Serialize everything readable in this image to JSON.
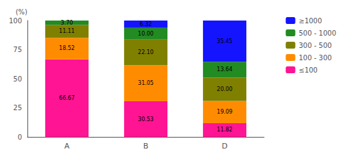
{
  "chart_data": {
    "type": "bar",
    "stacked": true,
    "categories": [
      "A",
      "B",
      "D"
    ],
    "series": [
      {
        "name": "≤100",
        "color": "#FF1493",
        "values": [
          66.67,
          30.53,
          11.82
        ],
        "value_labels": [
          "66.67",
          "30.53",
          "11.82"
        ]
      },
      {
        "name": "100 - 300",
        "color": "#FF8C00",
        "values": [
          18.52,
          31.05,
          19.09
        ],
        "value_labels": [
          "18.52",
          "31.05",
          "19.09"
        ]
      },
      {
        "name": "300 - 500",
        "color": "#808000",
        "values": [
          11.11,
          22.1,
          20.0
        ],
        "value_labels": [
          "11.11",
          "22.10",
          "20.00"
        ]
      },
      {
        "name": "500 - 1000",
        "color": "#228B22",
        "values": [
          3.7,
          10.0,
          13.64
        ],
        "value_labels": [
          "3.70",
          "10.00",
          "13.64"
        ]
      },
      {
        "name": "≥1000",
        "color": "#1414FF",
        "values": [
          0.0,
          6.32,
          35.45
        ],
        "value_labels": [
          null,
          "6.32",
          "35.45"
        ]
      }
    ],
    "ylabel": "(%)",
    "ylim": [
      0,
      100
    ],
    "yticks": [
      0,
      25,
      50,
      75,
      100
    ],
    "grid": false,
    "legend": "right",
    "data_labels": true
  }
}
